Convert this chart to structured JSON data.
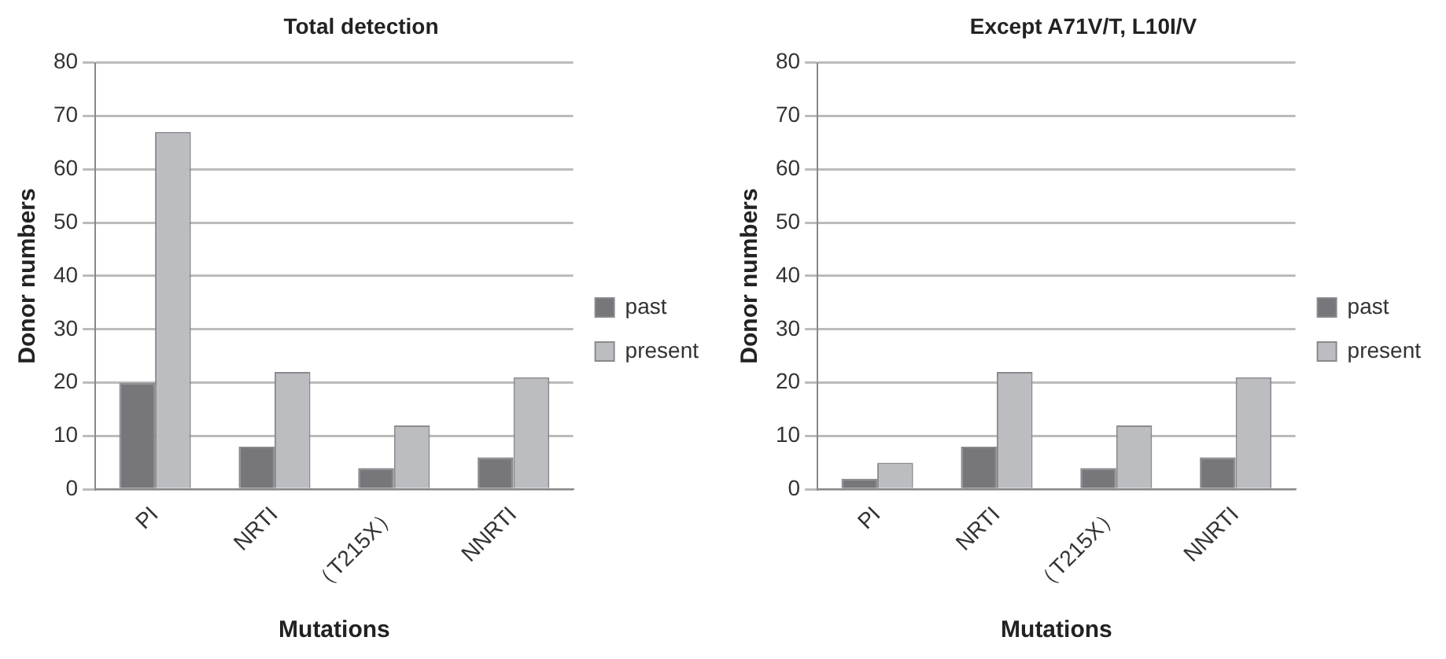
{
  "chart_data": [
    {
      "type": "bar",
      "title": "Total detection",
      "xlabel": "Mutations",
      "ylabel": "Donor numbers",
      "categories": [
        "PI",
        "NRTI",
        "（T215X）",
        "NNRTI"
      ],
      "series": [
        {
          "name": "past",
          "color": "#77777b",
          "values": [
            20,
            8,
            4,
            6
          ]
        },
        {
          "name": "present",
          "color": "#bcbdc1",
          "values": [
            67,
            22,
            12,
            21
          ]
        }
      ],
      "ylim": [
        0,
        80
      ],
      "yticks": [
        0,
        10,
        20,
        30,
        40,
        50,
        60,
        70,
        80
      ],
      "grid": "y",
      "legend": "right"
    },
    {
      "type": "bar",
      "title": "Except A71V/T, L10I/V",
      "xlabel": "Mutations",
      "ylabel": "Donor numbers",
      "categories": [
        "PI",
        "NRTI",
        "（T215X）",
        "NNRTI"
      ],
      "series": [
        {
          "name": "past",
          "color": "#77777b",
          "values": [
            2,
            8,
            4,
            6
          ]
        },
        {
          "name": "present",
          "color": "#bcbdc1",
          "values": [
            5,
            22,
            12,
            21
          ]
        }
      ],
      "ylim": [
        0,
        80
      ],
      "yticks": [
        0,
        10,
        20,
        30,
        40,
        50,
        60,
        70,
        80
      ],
      "grid": "y",
      "legend": "right"
    }
  ]
}
